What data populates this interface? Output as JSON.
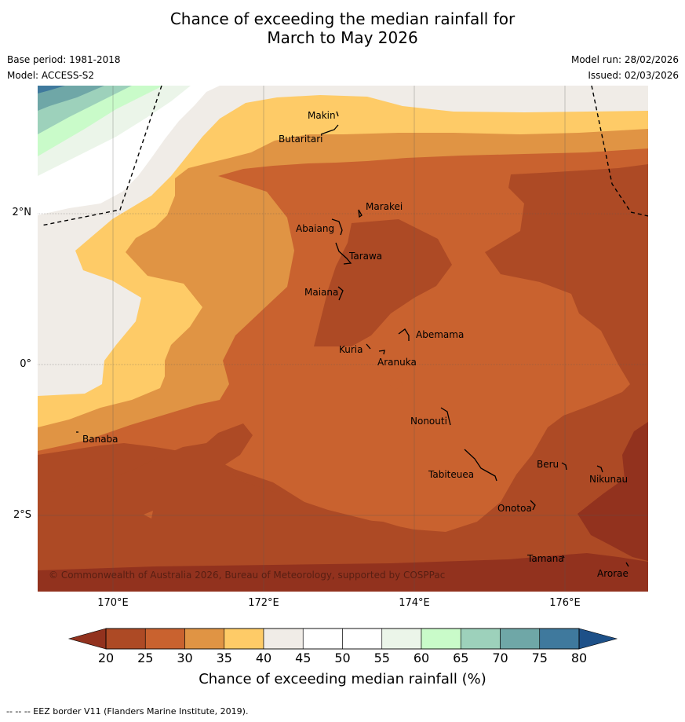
{
  "title_line1": "Chance of exceeding the median rainfall for",
  "title_line2": "March to May 2026",
  "base_period": "Base period: 1981-2018",
  "model": "Model: ACCESS-S2",
  "model_run": "Model run: 28/02/2026",
  "issued": "Issued: 02/03/2026",
  "copyright": "© Commonwealth of Australia 2026, Bureau of Meteorology, supported by COSPPac",
  "x_ticks": [
    "170°E",
    "172°E",
    "174°E",
    "176°E"
  ],
  "y_ticks": [
    "2°N",
    "0°",
    "2°S"
  ],
  "places": [
    "Makin",
    "Butaritari",
    "Marakei",
    "Abaiang",
    "Tarawa",
    "Maiana",
    "Abemama",
    "Kuria",
    "Aranuka",
    "Nonouti",
    "Banaba",
    "Beru",
    "Tabiteuea",
    "Nikunau",
    "Onotoa",
    "Tamana",
    "Arorae"
  ],
  "colorbar": {
    "ticks": [
      "20",
      "25",
      "30",
      "35",
      "40",
      "45",
      "50",
      "55",
      "60",
      "65",
      "70",
      "75",
      "80"
    ],
    "colors": [
      "#ad4a25",
      "#c9622f",
      "#e09444",
      "#fecb67",
      "#f0ece7",
      "#ffffff",
      "#ffffff",
      "#ebf5e9",
      "#c9fbc9",
      "#9dd1bb",
      "#6fa7a7",
      "#3f799d"
    ],
    "under_color": "#92321e",
    "over_color": "#1d5088",
    "label": "Chance of exceeding median rainfall (%)"
  },
  "eez_note": "--  --  -- EEZ border V11 (Flanders Marine Institute, 2019)."
}
